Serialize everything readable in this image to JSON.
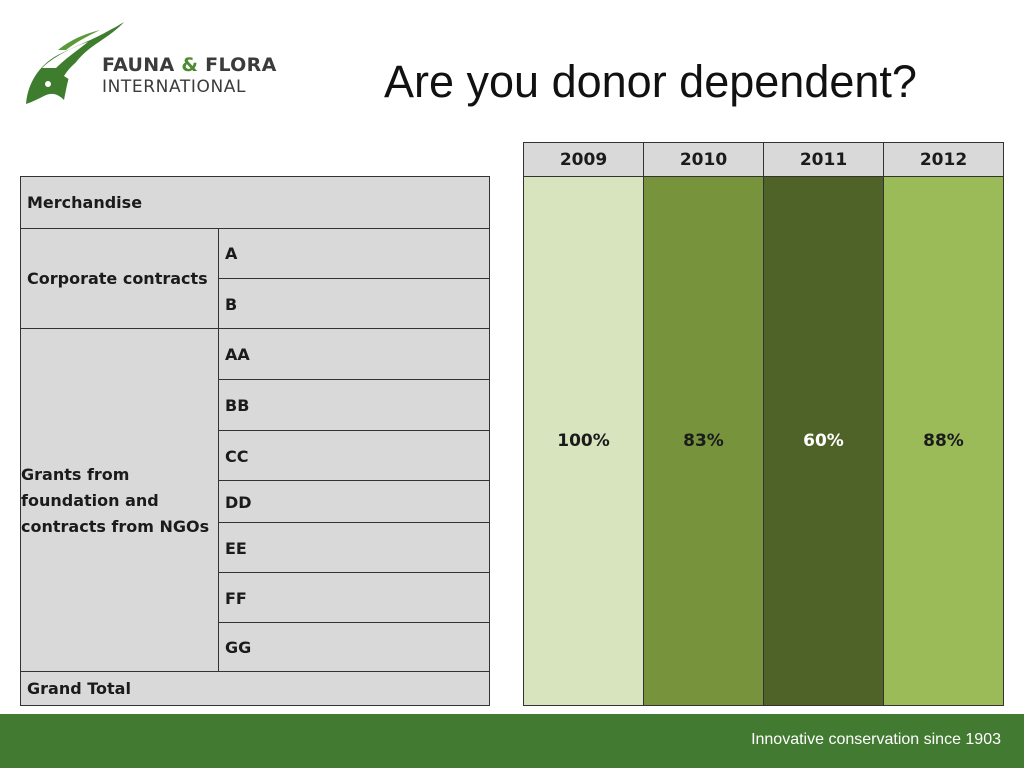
{
  "logo": {
    "line1_a": "FAUNA",
    "line1_amp": "&",
    "line1_b": "FLORA",
    "line2": "INTERNATIONAL",
    "icon": "antelope-head-icon"
  },
  "title": "Are you donor dependent?",
  "left_table": {
    "merchandise": "Merchandise",
    "corporate_contracts": "Corporate contracts",
    "corporate_items": [
      "A",
      "B"
    ],
    "grants": "Grants from foundation and contracts from NGOs",
    "grant_items": [
      "AA",
      "BB",
      "CC",
      "DD",
      "EE",
      "FF",
      "GG"
    ],
    "grand_total": "Grand Total"
  },
  "right_table": {
    "years": [
      "2009",
      "2010",
      "2011",
      "2012"
    ],
    "values": [
      "100%",
      "83%",
      "60%",
      "88%"
    ],
    "colors": [
      "#d7e4bd",
      "#77933c",
      "#4f6228",
      "#9bbb59"
    ]
  },
  "footer": {
    "tagline": "Innovative conservation since 1903",
    "color": "#437a32"
  }
}
